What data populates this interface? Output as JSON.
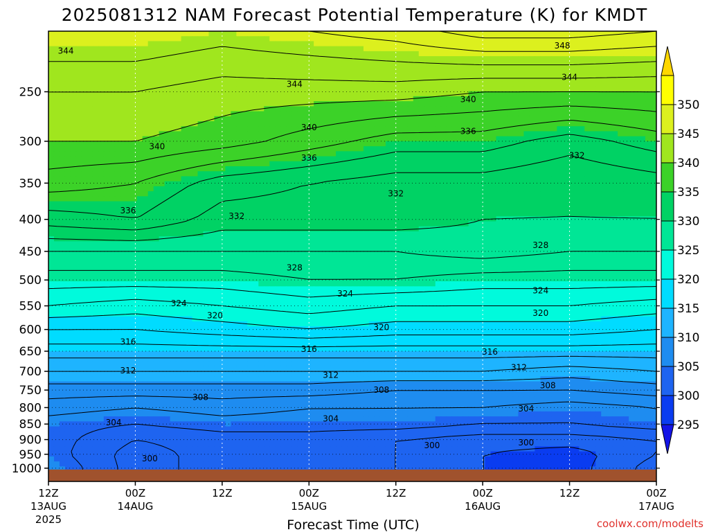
{
  "title": "2025081312 NAM Forecast Potential Temperature (K) for KMDT",
  "credit": "coolwx.com/modelts",
  "chart_data": {
    "type": "heatmap",
    "title": "2025081312 NAM Forecast Potential Temperature (K) for KMDT",
    "xlabel": "Forecast Time (UTC)",
    "ylabel": "",
    "y_scale": "log",
    "ylim": [
      1050,
      200
    ],
    "xlim_hours": [
      0,
      84
    ],
    "x_ticks": [
      {
        "hour": 0,
        "line1": "12Z",
        "line2": "13AUG",
        "line3": "2025"
      },
      {
        "hour": 12,
        "line1": "00Z",
        "line2": "14AUG",
        "line3": ""
      },
      {
        "hour": 24,
        "line1": "12Z",
        "line2": "",
        "line3": ""
      },
      {
        "hour": 36,
        "line1": "00Z",
        "line2": "15AUG",
        "line3": ""
      },
      {
        "hour": 48,
        "line1": "12Z",
        "line2": "",
        "line3": ""
      },
      {
        "hour": 60,
        "line1": "00Z",
        "line2": "16AUG",
        "line3": ""
      },
      {
        "hour": 72,
        "line1": "12Z",
        "line2": "",
        "line3": ""
      },
      {
        "hour": 84,
        "line1": "00Z",
        "line2": "17AUG",
        "line3": ""
      }
    ],
    "y_ticks": [
      250,
      300,
      350,
      400,
      450,
      500,
      550,
      600,
      650,
      700,
      750,
      800,
      850,
      900,
      950,
      1000
    ],
    "grid": true,
    "surface_pressure": 1005,
    "surface_color": "#a0522d",
    "colorbar": {
      "position": "right",
      "levels": [
        290,
        295,
        300,
        305,
        310,
        315,
        320,
        325,
        330,
        335,
        340,
        345,
        350,
        355
      ],
      "labels": [
        295,
        300,
        305,
        310,
        315,
        320,
        325,
        330,
        335,
        340,
        345,
        350
      ],
      "colors": [
        "#1414e6",
        "#0a3cf0",
        "#1e64f0",
        "#1e8cf0",
        "#1eb4ff",
        "#00dcff",
        "#00fadc",
        "#00e696",
        "#00d264",
        "#3cd228",
        "#a0e61e",
        "#dcf01e",
        "#ffff00",
        "#ffd700"
      ]
    },
    "times": [
      0,
      12,
      24,
      36,
      48,
      60,
      72,
      84
    ],
    "levels_hpa": [
      1000,
      950,
      900,
      850,
      800,
      750,
      700,
      650,
      600,
      550,
      500,
      450,
      400,
      350,
      300,
      250,
      200
    ],
    "theta_K": [
      [
        306,
        301,
        303,
        303,
        302,
        300,
        299,
        303
      ],
      [
        305,
        301,
        303,
        303,
        302,
        300,
        299,
        302
      ],
      [
        305,
        302,
        303,
        303,
        302,
        301,
        301,
        302
      ],
      [
        305,
        304,
        305,
        305,
        305,
        304,
        304,
        305
      ],
      [
        307,
        306,
        307,
        306,
        306,
        306,
        305,
        306
      ],
      [
        309,
        309,
        309,
        309,
        308,
        308,
        308,
        309
      ],
      [
        312,
        312,
        312,
        312,
        312,
        312,
        311,
        312
      ],
      [
        315,
        315,
        315,
        315,
        315,
        315,
        315,
        315
      ],
      [
        318,
        318,
        319,
        320,
        319,
        319,
        319,
        318
      ],
      [
        322,
        321,
        322,
        323,
        322,
        322,
        322,
        321
      ],
      [
        325,
        325,
        325,
        326,
        326,
        325,
        325,
        325
      ],
      [
        328,
        328,
        328,
        328,
        328,
        329,
        328,
        328
      ],
      [
        333,
        334,
        331,
        331,
        331,
        330,
        330,
        330
      ],
      [
        337,
        336,
        333,
        332,
        331,
        331,
        330,
        331
      ],
      [
        340,
        340,
        339,
        337,
        335,
        335,
        333,
        335
      ],
      [
        342,
        342,
        341,
        341,
        341,
        340,
        340,
        340
      ],
      [
        346,
        346,
        345,
        346,
        347,
        349,
        349,
        348
      ]
    ],
    "contour_interval": 2,
    "contour_labels": [
      {
        "value": 344,
        "hour": 2.4,
        "p": 215
      },
      {
        "value": 344,
        "hour": 34,
        "p": 243
      },
      {
        "value": 348,
        "hour": 71,
        "p": 211
      },
      {
        "value": 344,
        "hour": 72,
        "p": 237
      },
      {
        "value": 340,
        "hour": 58,
        "p": 257
      },
      {
        "value": 340,
        "hour": 36,
        "p": 285
      },
      {
        "value": 336,
        "hour": 58,
        "p": 289
      },
      {
        "value": 340,
        "hour": 15,
        "p": 306
      },
      {
        "value": 336,
        "hour": 36,
        "p": 319
      },
      {
        "value": 332,
        "hour": 73,
        "p": 316
      },
      {
        "value": 332,
        "hour": 48,
        "p": 364
      },
      {
        "value": 336,
        "hour": 11,
        "p": 387
      },
      {
        "value": 332,
        "hour": 26,
        "p": 395
      },
      {
        "value": 328,
        "hour": 68,
        "p": 440
      },
      {
        "value": 328,
        "hour": 34,
        "p": 478
      },
      {
        "value": 324,
        "hour": 41,
        "p": 526
      },
      {
        "value": 324,
        "hour": 68,
        "p": 520
      },
      {
        "value": 324,
        "hour": 18,
        "p": 545
      },
      {
        "value": 320,
        "hour": 23,
        "p": 570
      },
      {
        "value": 320,
        "hour": 46,
        "p": 595
      },
      {
        "value": 320,
        "hour": 68,
        "p": 565
      },
      {
        "value": 316,
        "hour": 11,
        "p": 628
      },
      {
        "value": 316,
        "hour": 36,
        "p": 645
      },
      {
        "value": 316,
        "hour": 61,
        "p": 652
      },
      {
        "value": 312,
        "hour": 11,
        "p": 698
      },
      {
        "value": 312,
        "hour": 39,
        "p": 710
      },
      {
        "value": 312,
        "hour": 65,
        "p": 690
      },
      {
        "value": 308,
        "hour": 21,
        "p": 770
      },
      {
        "value": 308,
        "hour": 46,
        "p": 750
      },
      {
        "value": 308,
        "hour": 69,
        "p": 737
      },
      {
        "value": 304,
        "hour": 9,
        "p": 845
      },
      {
        "value": 304,
        "hour": 39,
        "p": 833
      },
      {
        "value": 304,
        "hour": 66,
        "p": 803
      },
      {
        "value": 300,
        "hour": 14,
        "p": 965
      },
      {
        "value": 300,
        "hour": 53,
        "p": 920
      },
      {
        "value": 300,
        "hour": 66,
        "p": 910
      }
    ]
  }
}
